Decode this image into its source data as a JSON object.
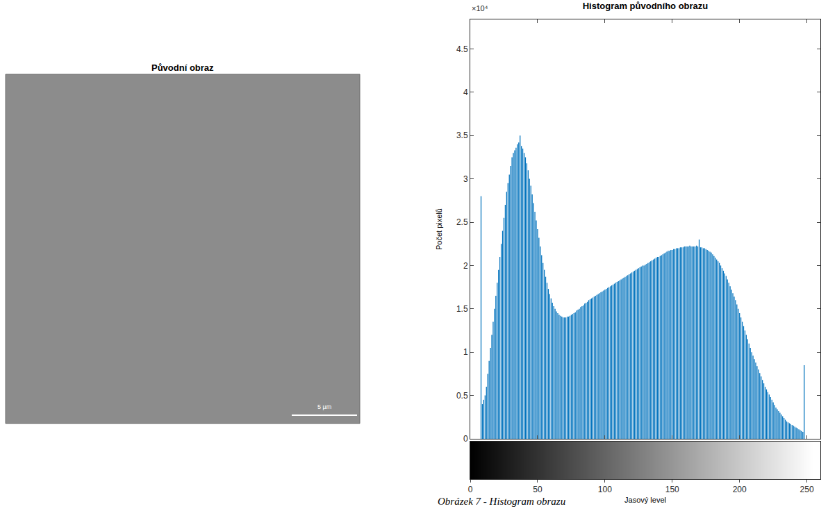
{
  "panel": {
    "title": "Původní obraz",
    "scale_bar": "5 µm"
  },
  "caption": "Obrázek 7 - Histogram obrazu",
  "chart_data": {
    "type": "bar",
    "title": "Histogram původního obrazu",
    "x_label": "Jasový level",
    "y_label": "Počet pixelů",
    "annotations": [
      "×10⁴"
    ],
    "color": "#0072bd",
    "grid": false,
    "xlim": [
      0,
      260
    ],
    "xticks": [
      0,
      50,
      100,
      150,
      200,
      250
    ],
    "ylim": [
      0,
      4.84
    ],
    "yticks": [
      0,
      0.5,
      1,
      1.5,
      2,
      2.5,
      3,
      3.5,
      4,
      4.5
    ],
    "x": [
      0,
      1,
      2,
      3,
      4,
      5,
      6,
      7,
      8,
      9,
      10,
      11,
      12,
      13,
      14,
      15,
      16,
      17,
      18,
      19,
      20,
      21,
      22,
      23,
      24,
      25,
      26,
      27,
      28,
      29,
      30,
      31,
      32,
      33,
      34,
      35,
      36,
      37,
      38,
      39,
      40,
      41,
      42,
      43,
      44,
      45,
      46,
      47,
      48,
      49,
      50,
      51,
      52,
      53,
      54,
      55,
      56,
      57,
      58,
      59,
      60,
      61,
      62,
      63,
      64,
      65,
      66,
      67,
      68,
      69,
      70,
      71,
      72,
      73,
      74,
      75,
      76,
      77,
      78,
      79,
      80,
      81,
      82,
      83,
      84,
      85,
      86,
      87,
      88,
      89,
      90,
      91,
      92,
      93,
      94,
      95,
      96,
      97,
      98,
      99,
      100,
      101,
      102,
      103,
      104,
      105,
      106,
      107,
      108,
      109,
      110,
      111,
      112,
      113,
      114,
      115,
      116,
      117,
      118,
      119,
      120,
      121,
      122,
      123,
      124,
      125,
      126,
      127,
      128,
      129,
      130,
      131,
      132,
      133,
      134,
      135,
      136,
      137,
      138,
      139,
      140,
      141,
      142,
      143,
      144,
      145,
      146,
      147,
      148,
      149,
      150,
      151,
      152,
      153,
      154,
      155,
      156,
      157,
      158,
      159,
      160,
      161,
      162,
      163,
      164,
      165,
      166,
      167,
      168,
      169,
      170,
      171,
      172,
      173,
      174,
      175,
      176,
      177,
      178,
      179,
      180,
      181,
      182,
      183,
      184,
      185,
      186,
      187,
      188,
      189,
      190,
      191,
      192,
      193,
      194,
      195,
      196,
      197,
      198,
      199,
      200,
      201,
      202,
      203,
      204,
      205,
      206,
      207,
      208,
      209,
      210,
      211,
      212,
      213,
      214,
      215,
      216,
      217,
      218,
      219,
      220,
      221,
      222,
      223,
      224,
      225,
      226,
      227,
      228,
      229,
      230,
      231,
      232,
      233,
      234,
      235,
      236,
      237,
      238,
      239,
      240,
      241,
      242,
      243,
      244,
      245,
      246,
      247,
      248,
      249,
      250,
      251,
      252,
      253,
      254,
      255
    ],
    "values": [
      0,
      0,
      0,
      0,
      0,
      0,
      0,
      0,
      2.8,
      0.4,
      0.45,
      0.5,
      0.6,
      0.75,
      0.9,
      1.05,
      1.2,
      1.35,
      1.5,
      1.65,
      1.8,
      1.95,
      2.1,
      2.25,
      2.4,
      2.55,
      2.7,
      2.85,
      2.95,
      3.05,
      3.15,
      3.25,
      3.3,
      3.33,
      3.36,
      3.4,
      3.42,
      3.5,
      3.38,
      3.35,
      3.3,
      3.25,
      3.18,
      3.1,
      3.0,
      2.92,
      2.82,
      2.72,
      2.62,
      2.52,
      2.42,
      2.32,
      2.22,
      2.12,
      2.03,
      1.95,
      1.87,
      1.8,
      1.73,
      1.67,
      1.62,
      1.57,
      1.53,
      1.5,
      1.47,
      1.45,
      1.43,
      1.42,
      1.41,
      1.4,
      1.4,
      1.4,
      1.41,
      1.41,
      1.42,
      1.43,
      1.44,
      1.45,
      1.46,
      1.48,
      1.49,
      1.5,
      1.52,
      1.53,
      1.54,
      1.56,
      1.57,
      1.58,
      1.6,
      1.61,
      1.62,
      1.63,
      1.64,
      1.65,
      1.66,
      1.67,
      1.68,
      1.69,
      1.7,
      1.71,
      1.72,
      1.73,
      1.74,
      1.75,
      1.76,
      1.77,
      1.78,
      1.79,
      1.8,
      1.81,
      1.82,
      1.83,
      1.84,
      1.85,
      1.86,
      1.87,
      1.88,
      1.89,
      1.9,
      1.91,
      1.92,
      1.93,
      1.94,
      1.95,
      1.96,
      1.97,
      1.98,
      1.99,
      2.0,
      2.0,
      2.01,
      2.02,
      2.03,
      2.04,
      2.05,
      2.06,
      2.07,
      2.08,
      2.09,
      2.1,
      2.1,
      2.11,
      2.12,
      2.13,
      2.14,
      2.15,
      2.16,
      2.17,
      2.17,
      2.18,
      2.18,
      2.19,
      2.19,
      2.2,
      2.2,
      2.2,
      2.21,
      2.21,
      2.21,
      2.22,
      2.22,
      2.22,
      2.22,
      2.23,
      2.22,
      2.22,
      2.22,
      2.22,
      2.23,
      2.22,
      2.3,
      2.21,
      2.21,
      2.2,
      2.2,
      2.19,
      2.18,
      2.17,
      2.16,
      2.15,
      2.13,
      2.11,
      2.09,
      2.07,
      2.05,
      2.03,
      2.0,
      1.97,
      1.94,
      1.91,
      1.88,
      1.84,
      1.8,
      1.76,
      1.72,
      1.68,
      1.64,
      1.6,
      1.55,
      1.5,
      1.45,
      1.4,
      1.35,
      1.3,
      1.25,
      1.2,
      1.15,
      1.1,
      1.05,
      1.0,
      0.96,
      0.92,
      0.88,
      0.84,
      0.8,
      0.76,
      0.72,
      0.68,
      0.64,
      0.6,
      0.57,
      0.54,
      0.51,
      0.48,
      0.45,
      0.42,
      0.39,
      0.36,
      0.34,
      0.32,
      0.3,
      0.28,
      0.26,
      0.24,
      0.22,
      0.2,
      0.19,
      0.18,
      0.17,
      0.16,
      0.15,
      0.14,
      0.13,
      0.12,
      0.11,
      0.1,
      0.09,
      0.08,
      0.85,
      0,
      0,
      0,
      0,
      0,
      0,
      0
    ]
  }
}
